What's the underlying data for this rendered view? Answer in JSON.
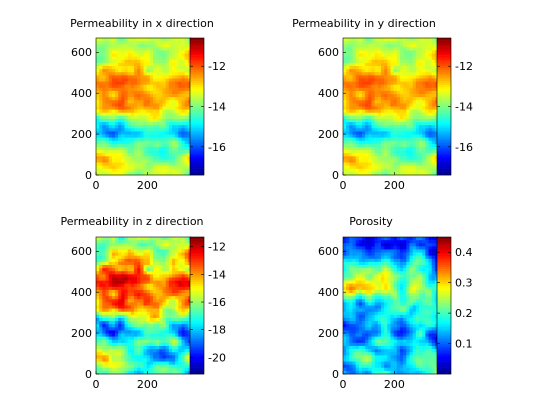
{
  "figure": {
    "background": "#ffffff",
    "colormap": "jet",
    "colormap_stops": [
      "#00008f",
      "#0000ff",
      "#007fff",
      "#00ffff",
      "#7fff7f",
      "#ffff00",
      "#ff7f00",
      "#ff0000",
      "#800000"
    ]
  },
  "chart_data": [
    {
      "type": "heatmap",
      "title": "Permeability in x direction",
      "xlim": [
        0,
        370
      ],
      "ylim": [
        0,
        670
      ],
      "xticks": [
        "0",
        "200"
      ],
      "yticks": [
        "0",
        "200",
        "400",
        "600"
      ],
      "colorbar": {
        "range": [
          -17.4,
          -10.6
        ],
        "ticks": [
          "-12",
          "-14",
          "-16"
        ],
        "tick_values": [
          -12,
          -14,
          -16
        ]
      },
      "pattern_seed": 11,
      "bias": [
        {
          "y": 80,
          "v": -13.4
        },
        {
          "y": 200,
          "v": -15.4
        },
        {
          "y": 330,
          "v": -12.8
        },
        {
          "y": 450,
          "v": -12.2
        },
        {
          "y": 560,
          "v": -13.4
        },
        {
          "y": 650,
          "v": -13.8
        }
      ],
      "noise_amp": 1.4
    },
    {
      "type": "heatmap",
      "title": "Permeability in y direction",
      "xlim": [
        0,
        370
      ],
      "ylim": [
        0,
        670
      ],
      "xticks": [
        "0",
        "200"
      ],
      "yticks": [
        "0",
        "200",
        "400",
        "600"
      ],
      "colorbar": {
        "range": [
          -17.4,
          -10.6
        ],
        "ticks": [
          "-12",
          "-14",
          "-16"
        ],
        "tick_values": [
          -12,
          -14,
          -16
        ]
      },
      "pattern_seed": 11,
      "bias": [
        {
          "y": 80,
          "v": -13.4
        },
        {
          "y": 200,
          "v": -15.4
        },
        {
          "y": 330,
          "v": -12.8
        },
        {
          "y": 450,
          "v": -12.2
        },
        {
          "y": 560,
          "v": -13.4
        },
        {
          "y": 650,
          "v": -13.8
        }
      ],
      "noise_amp": 1.4
    },
    {
      "type": "heatmap",
      "title": "Permeability in z direction",
      "xlim": [
        0,
        370
      ],
      "ylim": [
        0,
        670
      ],
      "xticks": [
        "0",
        "200"
      ],
      "yticks": [
        "0",
        "200",
        "400",
        "600"
      ],
      "colorbar": {
        "range": [
          -21.2,
          -11.3
        ],
        "ticks": [
          "-12",
          "-14",
          "-16",
          "-18",
          "-20"
        ],
        "tick_values": [
          -12,
          -14,
          -16,
          -18,
          -20
        ]
      },
      "pattern_seed": 11,
      "bias": [
        {
          "y": 80,
          "v": -16.5
        },
        {
          "y": 200,
          "v": -18.5
        },
        {
          "y": 330,
          "v": -14.5
        },
        {
          "y": 450,
          "v": -12.6
        },
        {
          "y": 560,
          "v": -15.0
        },
        {
          "y": 650,
          "v": -16.5
        }
      ],
      "noise_amp": 3.4
    },
    {
      "type": "heatmap",
      "title": "Porosity",
      "xlim": [
        0,
        370
      ],
      "ylim": [
        0,
        670
      ],
      "xticks": [
        "0",
        "200"
      ],
      "yticks": [
        "0",
        "200",
        "400",
        "600"
      ],
      "colorbar": {
        "range": [
          0.0,
          0.45
        ],
        "ticks": [
          "0.4",
          "0.3",
          "0.2",
          "0.1"
        ],
        "tick_values": [
          0.4,
          0.3,
          0.2,
          0.1
        ]
      },
      "pattern_seed": 29,
      "bias": [
        {
          "y": 80,
          "v": 0.18
        },
        {
          "y": 200,
          "v": 0.11
        },
        {
          "y": 330,
          "v": 0.19
        },
        {
          "y": 420,
          "v": 0.24
        },
        {
          "y": 560,
          "v": 0.15
        },
        {
          "y": 650,
          "v": 0.1
        }
      ],
      "noise_amp": 0.13
    }
  ]
}
